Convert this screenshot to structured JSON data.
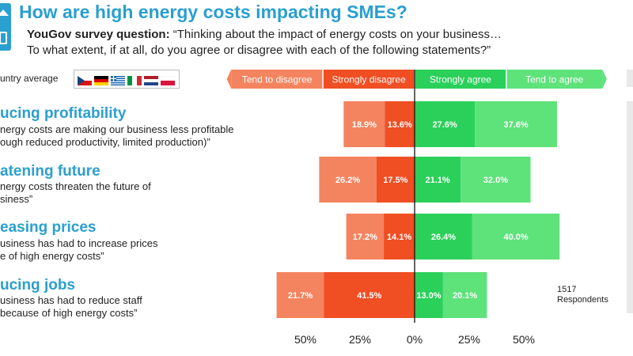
{
  "header": {
    "title": "How are high energy costs impacting SMEs?",
    "question_label": "YouGov survey question:",
    "question_line1": "“Thinking about the impact of energy costs on your business…",
    "question_line2": "To what extent, if at all, do you agree or disagree with each of the following statements?”"
  },
  "filter": {
    "label": "untry average",
    "flags": [
      "cz",
      "de",
      "gr",
      "it",
      "nl",
      "pl"
    ]
  },
  "statements": [
    {
      "title": "ucing profitability",
      "desc_line1": "nergy costs are making our business less profitable",
      "desc_line2": "ough reduced productivity, limited production)”"
    },
    {
      "title": "atening future",
      "desc_line1": "nergy costs threaten the future of",
      "desc_line2": "siness”"
    },
    {
      "title": "easing prices",
      "desc_line1": "usiness has had to increase prices",
      "desc_line2": "e of high energy costs”"
    },
    {
      "title": "ucing jobs",
      "desc_line1": "usiness has had to reduce staff",
      "desc_line2": "because of high energy costs”"
    }
  ],
  "respondents": {
    "count": "1517",
    "label": "Respondents"
  },
  "colors": {
    "tend_disagree": "#f4845f",
    "strongly_disagree": "#f04e23",
    "strongly_agree": "#2bd05a",
    "tend_agree": "#5ee27a",
    "title_blue": "#2a9fd0"
  },
  "chart_data": {
    "type": "bar",
    "orientation": "horizontal-diverging",
    "series": [
      {
        "name": "Tend to disagree",
        "values": [
          18.9,
          26.2,
          17.2,
          21.7
        ]
      },
      {
        "name": "Strongly disagree",
        "values": [
          13.6,
          17.5,
          14.1,
          41.5
        ]
      },
      {
        "name": "Strongly agree",
        "values": [
          27.6,
          21.1,
          26.4,
          13.0
        ]
      },
      {
        "name": "Tend to agree",
        "values": [
          37.6,
          32.0,
          40.0,
          20.1
        ]
      }
    ],
    "data_labels": [
      [
        "18.9%",
        "13.6%",
        "27.6%",
        "37.6%"
      ],
      [
        "26.2%",
        "17.5%",
        "21.1%",
        "32.0%"
      ],
      [
        "17.2%",
        "14.1%",
        "26.4%",
        "40.0%"
      ],
      [
        "21.7%",
        "41.5%",
        "13.0%",
        "20.1%"
      ]
    ],
    "xlim": [
      -50,
      50
    ],
    "x_ticks": [
      -50,
      -25,
      0,
      25,
      50
    ],
    "x_tick_labels": [
      "50%",
      "25%",
      "0%",
      "25%",
      "50%"
    ],
    "legend_position": "top",
    "grid": false
  }
}
